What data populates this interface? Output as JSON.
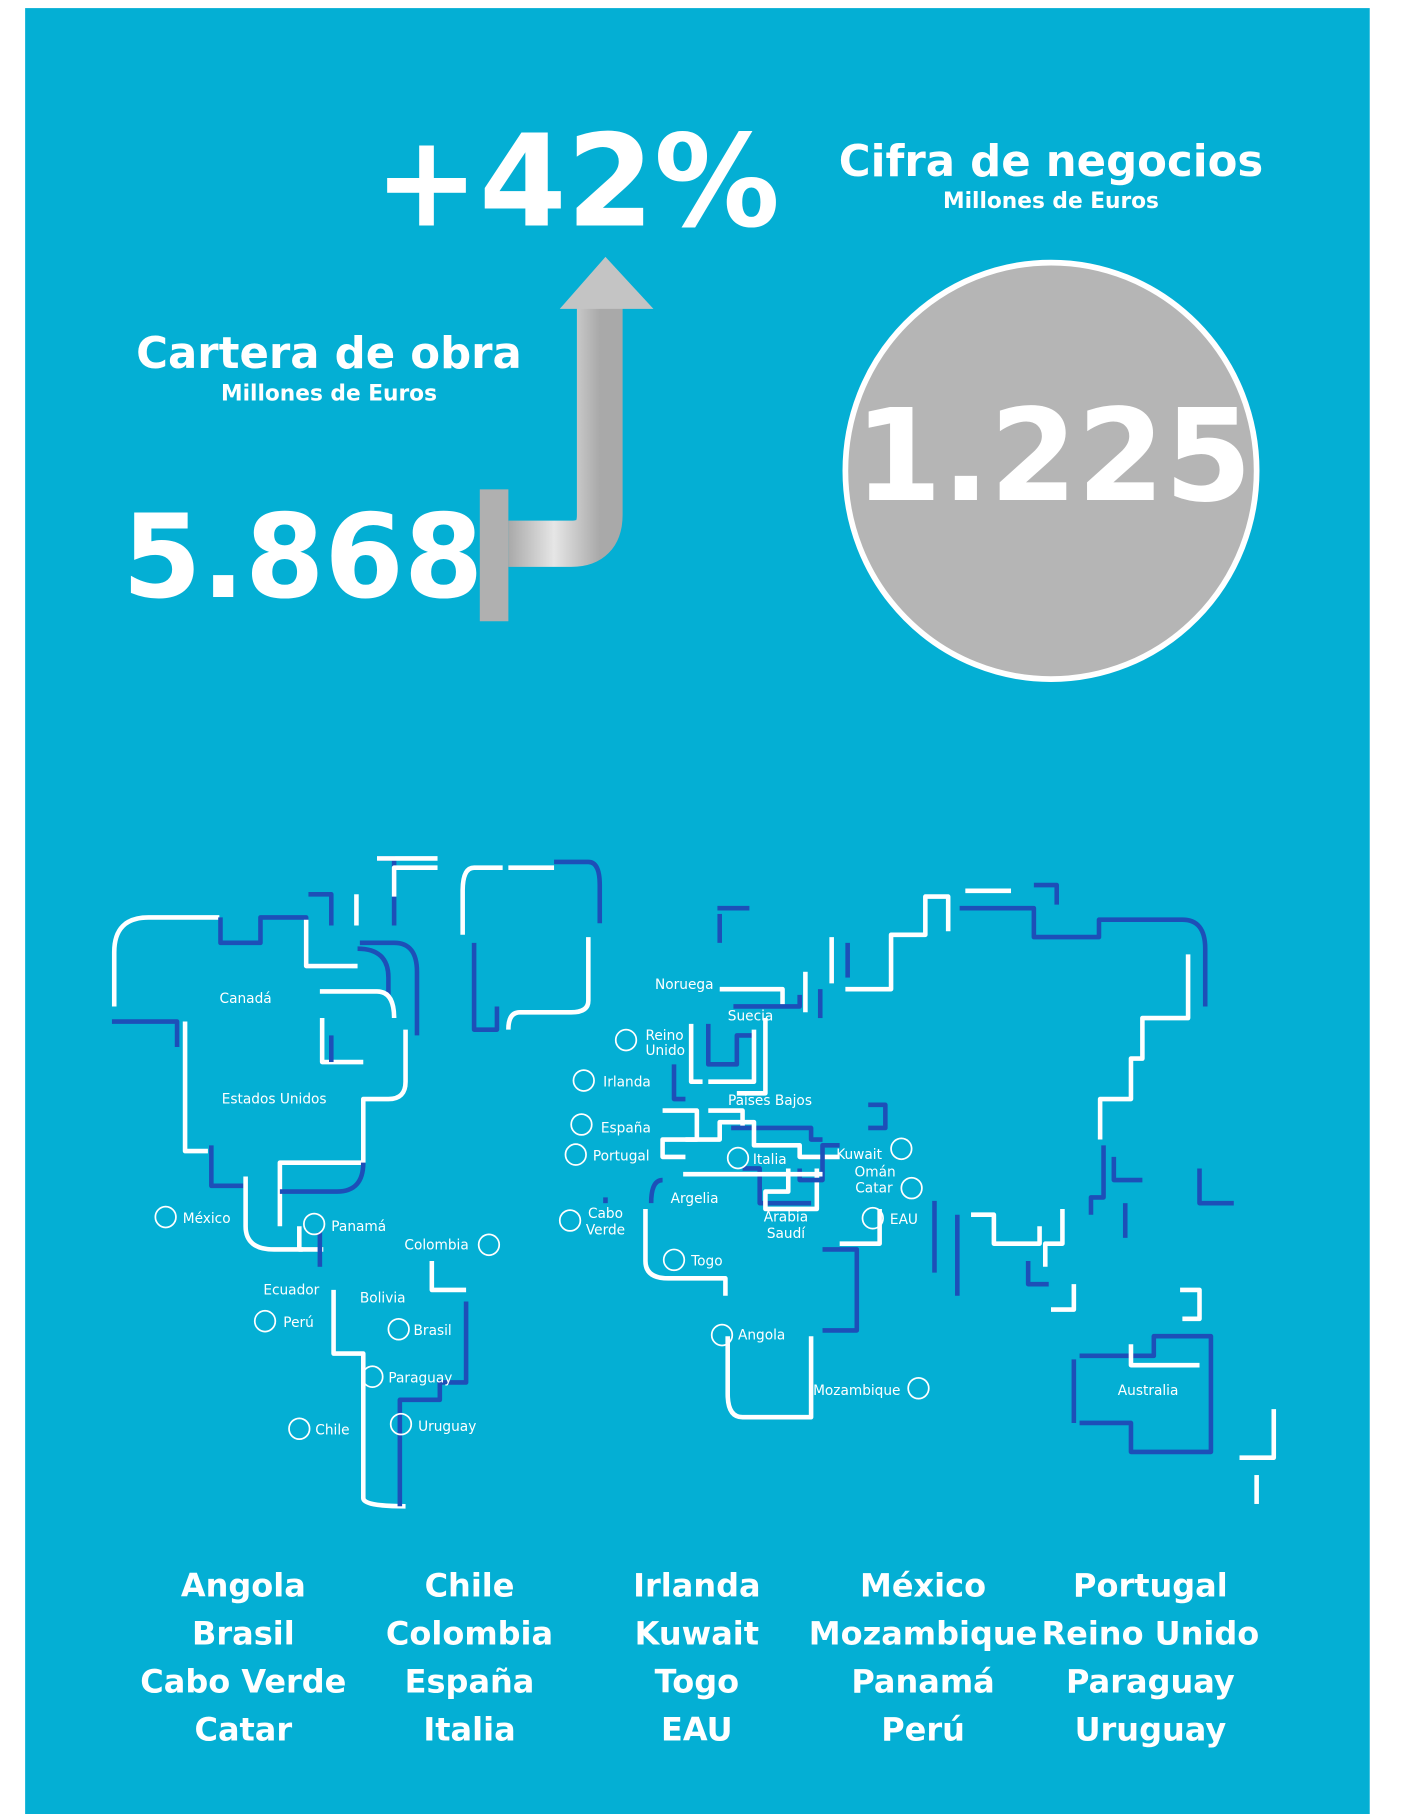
{
  "growth": "+42%",
  "backlog": {
    "title": "Cartera de obra",
    "unit": "Millones de Euros",
    "value": "5.868"
  },
  "revenue": {
    "title": "Cifra de negocios",
    "unit": "Millones de Euros",
    "value": "1.225"
  },
  "map": {
    "labels": [
      "Canadá",
      "Estados Unidos",
      "México",
      "Panamá",
      "Colombia",
      "Ecuador",
      "Bolivia",
      "Perú",
      "Brasil",
      "Paraguay",
      "Chile",
      "Uruguay",
      "Noruega",
      "Reino",
      "Unido",
      "Suecia",
      "Irlanda",
      "Países Bajos",
      "España",
      "Portugal",
      "Italia",
      "Kuwait",
      "Omán",
      "Catar",
      "Argelia",
      "Cabo",
      "Verde",
      "Arabia",
      "Saudí",
      "EAU",
      "Togo",
      "Angola",
      "Mozambique",
      "Australia"
    ]
  },
  "countries": [
    [
      "Angola",
      "Brasil",
      "Cabo Verde",
      "Catar"
    ],
    [
      "Chile",
      "Colombia",
      "España",
      "Italia"
    ],
    [
      "Irlanda",
      "Kuwait",
      "Togo",
      "EAU"
    ],
    [
      "México",
      "Mozambique",
      "Panamá",
      "Perú"
    ],
    [
      "Portugal",
      "Reino Unido",
      "Paraguay",
      "Uruguay"
    ]
  ]
}
